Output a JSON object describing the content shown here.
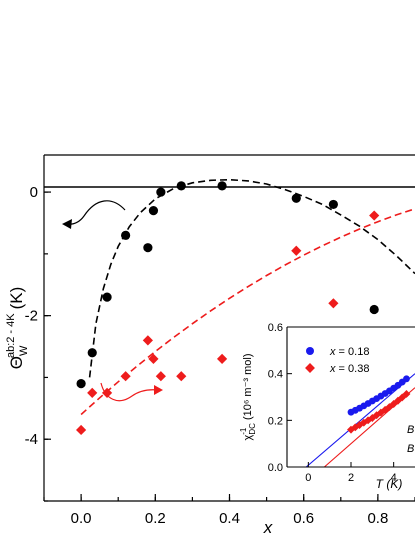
{
  "chart_data": [
    {
      "type": "scatter",
      "title": "",
      "xlabel": "x",
      "ylabel": "Θ",
      "ylabel_subscript": "W",
      "ylabel_superscript": "ab:2 - 4K",
      "ylabel_unit": "(K)",
      "xlim": [
        -0.1,
        0.9
      ],
      "ylim": [
        -5,
        0.6
      ],
      "x_ticks": [
        0.0,
        0.2,
        0.4,
        0.6,
        0.8
      ],
      "x_tick_labels": [
        "0.0",
        "0.2",
        "0.4",
        "0.6",
        "0.8"
      ],
      "y_ticks": [
        0,
        -2,
        -4
      ],
      "y_tick_labels": [
        "0",
        "-2",
        "-4"
      ],
      "grid": false,
      "reference_line_y": 0,
      "colors": {
        "black_series": "#000000",
        "red_series": "#ee1c1c"
      },
      "series": [
        {
          "marker": "circle",
          "color": "#000000",
          "axis": "left",
          "x": [
            0.0,
            0.03,
            0.07,
            0.12,
            0.18,
            0.195,
            0.215,
            0.27,
            0.38,
            0.58,
            0.68,
            0.79
          ],
          "y": [
            -3.1,
            -2.6,
            -1.7,
            -0.7,
            -0.9,
            -0.3,
            0.0,
            0.1,
            0.1,
            -0.1,
            -0.2,
            -1.9
          ]
        },
        {
          "marker": "diamond",
          "color": "#ee1c1c",
          "axis": "right",
          "x": [
            0.0,
            0.03,
            0.07,
            0.12,
            0.18,
            0.195,
            0.215,
            0.27,
            0.38,
            0.58,
            0.68,
            0.79
          ],
          "y": [
            -3.85,
            -3.25,
            -3.25,
            -2.98,
            -2.4,
            -2.7,
            -2.98,
            -2.98,
            -2.7,
            -0.95,
            -1.8,
            -0.38
          ]
        }
      ],
      "fit_curves": [
        {
          "color": "#000000",
          "style": "dashed",
          "x": [
            0.023,
            0.04,
            0.06,
            0.08,
            0.1,
            0.13,
            0.16,
            0.2,
            0.25,
            0.3,
            0.35,
            0.4,
            0.45,
            0.5,
            0.55,
            0.6,
            0.65,
            0.7,
            0.75,
            0.8,
            0.85,
            0.9
          ],
          "y": [
            -3.0,
            -2.13,
            -1.56,
            -1.17,
            -0.88,
            -0.56,
            -0.33,
            -0.11,
            0.06,
            0.15,
            0.19,
            0.2,
            0.18,
            0.13,
            0.04,
            -0.07,
            -0.2,
            -0.37,
            -0.55,
            -0.77,
            -1.03,
            -1.32
          ]
        },
        {
          "color": "#ee1c1c",
          "style": "dashed",
          "x": [
            0.0,
            0.05,
            0.1,
            0.15,
            0.2,
            0.25,
            0.3,
            0.35,
            0.4,
            0.45,
            0.5,
            0.55,
            0.6,
            0.65,
            0.7,
            0.75,
            0.8,
            0.85,
            0.9
          ],
          "y": [
            -3.6,
            -3.33,
            -3.07,
            -2.82,
            -2.58,
            -2.35,
            -2.13,
            -1.92,
            -1.72,
            -1.53,
            -1.35,
            -1.18,
            -1.02,
            -0.87,
            -0.73,
            -0.6,
            -0.48,
            -0.37,
            -0.27
          ]
        }
      ]
    },
    {
      "type": "scatter",
      "title": "",
      "xlabel": "T (K)",
      "ylabel": "χ",
      "ylabel_superscript": "-1",
      "ylabel_subscript": "DC",
      "ylabel_unit": "(10⁶ m⁻³ mol)",
      "xlim": [
        -1,
        5
      ],
      "ylim": [
        0.0,
        0.6
      ],
      "x_ticks": [
        0,
        2,
        4
      ],
      "x_tick_labels": [
        "0",
        "2",
        "4"
      ],
      "y_ticks": [
        0.0,
        0.2,
        0.4,
        0.6
      ],
      "y_tick_labels": [
        "0.0",
        "0.2",
        "0.4",
        "0.6"
      ],
      "legend_position": "top-left",
      "partial_text": [
        "B",
        "B"
      ],
      "series": [
        {
          "name_prefix": "x",
          "name_value": " = 0.18",
          "marker": "circle",
          "color": "#1a1aee",
          "x": [
            2.0,
            2.2,
            2.4,
            2.6,
            2.8,
            3.0,
            3.2,
            3.4,
            3.6,
            3.8,
            4.0,
            4.2,
            4.4,
            4.6
          ],
          "y": [
            0.235,
            0.243,
            0.252,
            0.262,
            0.272,
            0.283,
            0.293,
            0.304,
            0.315,
            0.326,
            0.338,
            0.35,
            0.364,
            0.378
          ]
        },
        {
          "name_prefix": "x",
          "name_value": " = 0.38",
          "marker": "diamond",
          "color": "#ee1c1c",
          "x": [
            2.0,
            2.2,
            2.4,
            2.6,
            2.8,
            3.0,
            3.2,
            3.4,
            3.6,
            3.8,
            4.0,
            4.2,
            4.4,
            4.6
          ],
          "y": [
            0.16,
            0.17,
            0.18,
            0.19,
            0.2,
            0.21,
            0.222,
            0.233,
            0.245,
            0.257,
            0.27,
            0.284,
            0.298,
            0.313
          ]
        }
      ],
      "fit_lines": [
        {
          "color": "#1a1aee",
          "x": [
            -0.1,
            5.0
          ],
          "y": [
            0.0,
            0.4
          ]
        },
        {
          "color": "#ee1c1c",
          "x": [
            0.75,
            5.0
          ],
          "y": [
            0.0,
            0.34
          ]
        }
      ]
    }
  ]
}
